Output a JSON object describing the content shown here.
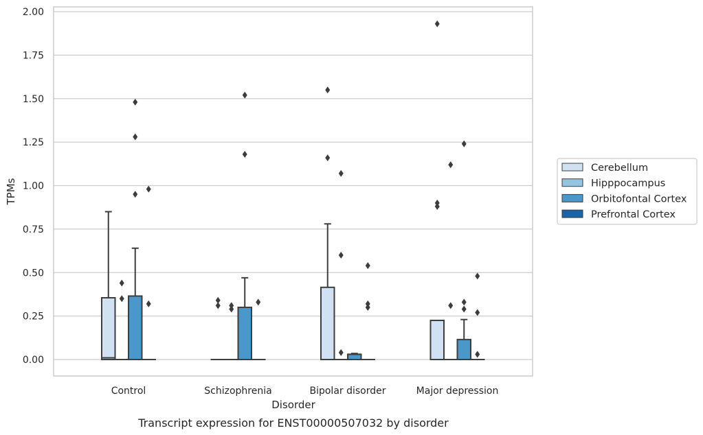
{
  "chart_data": {
    "type": "box",
    "title": "Transcript expression for ENST00000507032 by disorder",
    "xlabel": "Disorder",
    "ylabel": "TPMs",
    "ylim": [
      -0.1,
      2.02
    ],
    "yticks": [
      "0.00",
      "0.25",
      "0.50",
      "0.75",
      "1.00",
      "1.25",
      "1.50",
      "1.75",
      "2.00"
    ],
    "grid": true,
    "legend_position": "right",
    "categories": [
      "Control",
      "Schizophrenia",
      "Bipolar disorder",
      "Major depression"
    ],
    "series": [
      {
        "name": "Cerebellum",
        "color": "#d0e1f2"
      },
      {
        "name": "Hipppocampus",
        "color": "#94c4df"
      },
      {
        "name": "Orbitofontal Cortex",
        "color": "#4a98c9"
      },
      {
        "name": "Prefrontal Cortex",
        "color": "#1764ab"
      }
    ],
    "boxes": [
      [
        {
          "q1": 0,
          "median": 0.01,
          "q3": 0.355,
          "whisker_low": 0,
          "whisker_high": 0.85,
          "outliers": []
        },
        {
          "q1": 0,
          "median": 0,
          "q3": 0,
          "whisker_low": 0,
          "whisker_high": 0,
          "outliers": [
            0.44,
            0.35
          ]
        },
        {
          "q1": 0,
          "median": 0,
          "q3": 0.365,
          "whisker_low": 0,
          "whisker_high": 0.64,
          "outliers": [
            1.48,
            1.28,
            0.95
          ]
        },
        {
          "q1": 0,
          "median": 0,
          "q3": 0,
          "whisker_low": 0,
          "whisker_high": 0,
          "outliers": [
            0.98,
            0.32
          ]
        }
      ],
      [
        {
          "q1": 0,
          "median": 0,
          "q3": 0,
          "whisker_low": 0,
          "whisker_high": 0,
          "outliers": [
            0.34,
            0.31
          ]
        },
        {
          "q1": 0,
          "median": 0,
          "q3": 0,
          "whisker_low": 0,
          "whisker_high": 0,
          "outliers": [
            0.31,
            0.29
          ]
        },
        {
          "q1": 0,
          "median": 0,
          "q3": 0.3,
          "whisker_low": 0,
          "whisker_high": 0.47,
          "outliers": [
            1.52,
            1.18
          ]
        },
        {
          "q1": 0,
          "median": 0,
          "q3": 0,
          "whisker_low": 0,
          "whisker_high": 0,
          "outliers": [
            0.33
          ]
        }
      ],
      [
        {
          "q1": 0,
          "median": 0,
          "q3": 0.415,
          "whisker_low": 0,
          "whisker_high": 0.78,
          "outliers": [
            1.55,
            1.16
          ]
        },
        {
          "q1": 0,
          "median": 0,
          "q3": 0,
          "whisker_low": 0,
          "whisker_high": 0,
          "outliers": [
            1.07,
            0.6,
            0.04
          ]
        },
        {
          "q1": 0,
          "median": 0.03,
          "q3": 0.03,
          "whisker_low": 0,
          "whisker_high": 0.035,
          "outliers": []
        },
        {
          "q1": 0,
          "median": 0,
          "q3": 0,
          "whisker_low": 0,
          "whisker_high": 0,
          "outliers": [
            0.54,
            0.3,
            0.32
          ]
        }
      ],
      [
        {
          "q1": 0,
          "median": 0.225,
          "q3": 0.225,
          "whisker_low": 0,
          "whisker_high": 0.225,
          "outliers": [
            1.93,
            0.9,
            0.88
          ]
        },
        {
          "q1": 0,
          "median": 0,
          "q3": 0,
          "whisker_low": 0,
          "whisker_high": 0,
          "outliers": [
            1.12,
            0.31
          ]
        },
        {
          "q1": 0,
          "median": 0,
          "q3": 0.115,
          "whisker_low": 0,
          "whisker_high": 0.23,
          "outliers": [
            1.24,
            0.33,
            0.29
          ]
        },
        {
          "q1": 0,
          "median": 0,
          "q3": 0,
          "whisker_low": 0,
          "whisker_high": 0,
          "outliers": [
            0.48,
            0.27,
            0.03
          ]
        }
      ]
    ]
  }
}
